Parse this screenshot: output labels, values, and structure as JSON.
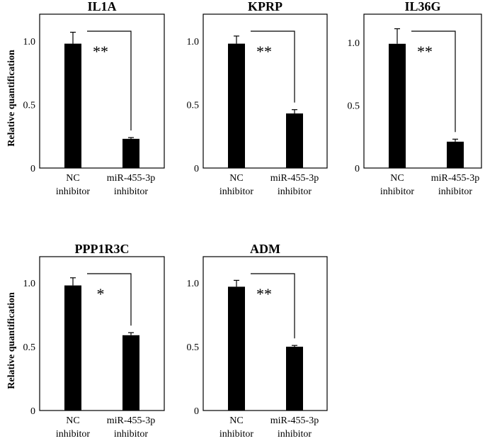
{
  "figure": {
    "ylabel": "Relative quantification"
  },
  "chart_data": [
    {
      "type": "bar",
      "title": "IL1A",
      "categories": [
        [
          "NC",
          "inhibitor"
        ],
        [
          "miR-455-3p",
          "inhibitor"
        ]
      ],
      "values": [
        0.98,
        0.23
      ],
      "errors": [
        0.09,
        0.01
      ],
      "significance": "**",
      "ylabel": "Relative quantification",
      "yticks": [
        "0",
        "0.5",
        "1.0"
      ],
      "ylim": [
        0,
        1.2
      ],
      "bar_color": "#000000"
    },
    {
      "type": "bar",
      "title": "KPRP",
      "categories": [
        [
          "NC",
          "inhibitor"
        ],
        [
          "miR-455-3p",
          "inhibitor"
        ]
      ],
      "values": [
        0.98,
        0.43
      ],
      "errors": [
        0.06,
        0.03
      ],
      "significance": "**",
      "ylabel": "",
      "yticks": [
        "0",
        "0.5",
        "1.0"
      ],
      "ylim": [
        0,
        1.2
      ],
      "bar_color": "#000000"
    },
    {
      "type": "bar",
      "title": "IL36G",
      "categories": [
        [
          "NC",
          "inhibitor"
        ],
        [
          "miR-455-3p",
          "inhibitor"
        ]
      ],
      "values": [
        0.99,
        0.21
      ],
      "errors": [
        0.12,
        0.02
      ],
      "significance": "**",
      "ylabel": "",
      "yticks": [
        "0",
        "0.5",
        "1.0"
      ],
      "ylim": [
        0,
        1.2
      ],
      "bar_color": "#000000"
    },
    {
      "type": "bar",
      "title": "PPP1R3C",
      "categories": [
        [
          "NC",
          "inhibitor"
        ],
        [
          "miR-455-3p",
          "inhibitor"
        ]
      ],
      "values": [
        0.98,
        0.59
      ],
      "errors": [
        0.06,
        0.02
      ],
      "significance": "*",
      "ylabel": "Relative quantification",
      "yticks": [
        "0",
        "0.5",
        "1.0"
      ],
      "ylim": [
        0,
        1.2
      ],
      "bar_color": "#000000"
    },
    {
      "type": "bar",
      "title": "ADM",
      "categories": [
        [
          "NC",
          "inhibitor"
        ],
        [
          "miR-455-3p",
          "inhibitor"
        ]
      ],
      "values": [
        0.97,
        0.5
      ],
      "errors": [
        0.05,
        0.01
      ],
      "significance": "**",
      "ylabel": "",
      "yticks": [
        "0",
        "0.5",
        "1.0"
      ],
      "ylim": [
        0,
        1.2
      ],
      "bar_color": "#000000"
    }
  ]
}
